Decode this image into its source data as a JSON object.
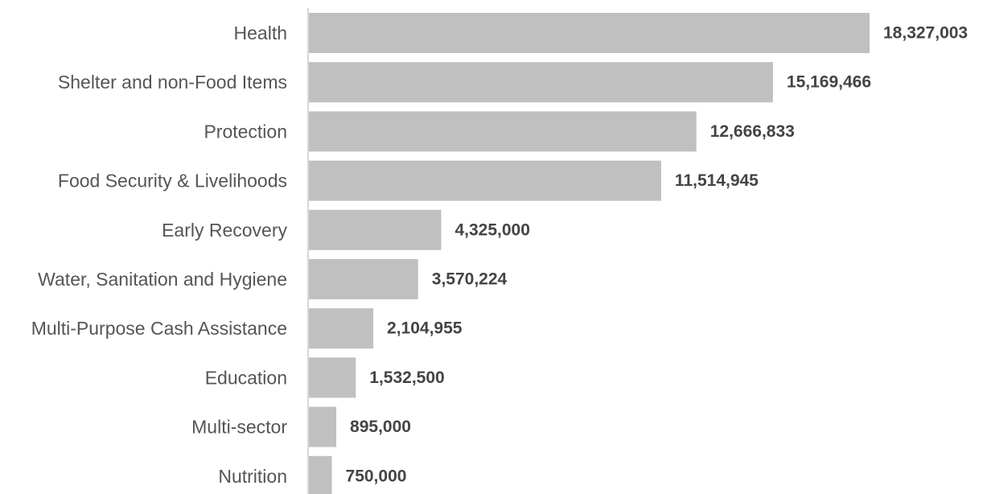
{
  "chart_data": {
    "type": "bar",
    "orientation": "horizontal",
    "title": "",
    "xlabel": "",
    "ylabel": "",
    "categories": [
      "Health",
      "Shelter and non-Food Items",
      "Protection",
      "Food Security & Livelihoods",
      "Early Recovery",
      "Water, Sanitation and Hygiene",
      "Multi-Purpose Cash Assistance",
      "Education",
      "Multi-sector",
      "Nutrition"
    ],
    "values": [
      18327003,
      15169466,
      12666833,
      11514945,
      4325000,
      3570224,
      2104955,
      1532500,
      895000,
      750000
    ],
    "value_labels": [
      "18,327,003",
      "15,169,466",
      "12,666,833",
      "11,514,945",
      "4,325,000",
      "3,570,224",
      "2,104,955",
      "1,532,500",
      "895,000",
      "750,000"
    ],
    "xlim": [
      0,
      18327003
    ],
    "grid": false,
    "legend": "none",
    "colors": {
      "bar": "#c0c0c0",
      "axis": "#cccccc",
      "category_text": "#555555",
      "value_text": "#444444"
    }
  }
}
